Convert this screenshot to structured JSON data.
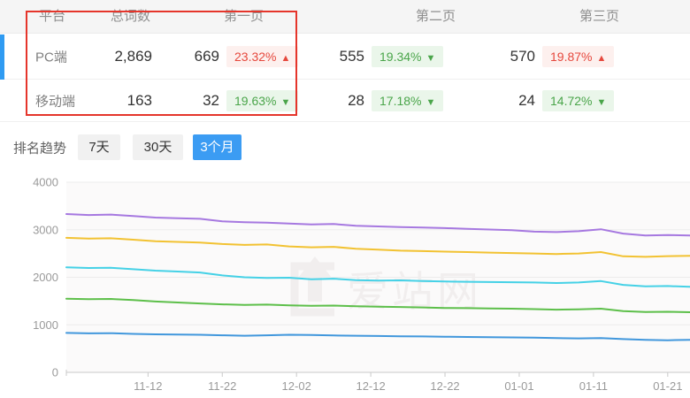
{
  "table": {
    "headers": {
      "platform": "平台",
      "total": "总词数",
      "page1": "第一页",
      "page2": "第二页",
      "page3": "第三页"
    },
    "rows": [
      {
        "platform": "PC端",
        "total": "2,869",
        "page1": {
          "count": "669",
          "pct": "23.32%",
          "dir": "▲",
          "trend": "up"
        },
        "page2": {
          "count": "555",
          "pct": "19.34%",
          "dir": "▼",
          "trend": "down"
        },
        "page3": {
          "count": "570",
          "pct": "19.87%",
          "dir": "▲",
          "trend": "up"
        }
      },
      {
        "platform": "移动端",
        "total": "163",
        "page1": {
          "count": "32",
          "pct": "19.63%",
          "dir": "▼",
          "trend": "down"
        },
        "page2": {
          "count": "28",
          "pct": "17.18%",
          "dir": "▼",
          "trend": "down"
        },
        "page3": {
          "count": "24",
          "pct": "14.72%",
          "dir": "▼",
          "trend": "down"
        }
      }
    ]
  },
  "trend": {
    "label": "排名趋势",
    "tabs": [
      {
        "label": "7天",
        "active": false
      },
      {
        "label": "30天",
        "active": false
      },
      {
        "label": "3个月",
        "active": true
      }
    ]
  },
  "colors": {
    "accent_blue": "#3b9cf3",
    "focus_red": "#e5352b",
    "badge_up_text": "#e6483d",
    "badge_down_text": "#4aa54a"
  },
  "chart_data": {
    "type": "line",
    "title": "",
    "xlabel": "",
    "ylabel": "",
    "grid": true,
    "legend_position": "none",
    "watermark": "爱站网",
    "y_axis": {
      "min": 0,
      "max": 4000,
      "step": 1000,
      "tick_labels": [
        "0",
        "1000",
        "2000",
        "3000",
        "4000"
      ]
    },
    "x_axis": {
      "tick_labels": [
        "11-12",
        "11-22",
        "12-02",
        "12-12",
        "12-22",
        "01-01",
        "01-11",
        "01-21"
      ],
      "tick_days": [
        11,
        21,
        31,
        41,
        51,
        61,
        71,
        81
      ],
      "total_days": 84
    },
    "x_labels": [
      "11-01",
      "11-04",
      "11-07",
      "11-10",
      "11-13",
      "11-16",
      "11-19",
      "11-22",
      "11-25",
      "11-28",
      "12-01",
      "12-04",
      "12-07",
      "12-10",
      "12-13",
      "12-16",
      "12-19",
      "12-22",
      "12-25",
      "12-28",
      "12-31",
      "01-03",
      "01-06",
      "01-09",
      "01-12",
      "01-15",
      "01-18",
      "01-21",
      "01-24"
    ],
    "series": [
      {
        "name": "line-purple",
        "color": "#a678e0",
        "values": [
          3330,
          3310,
          3320,
          3290,
          3255,
          3240,
          3230,
          3175,
          3160,
          3150,
          3130,
          3110,
          3120,
          3085,
          3070,
          3055,
          3045,
          3035,
          3020,
          3005,
          2990,
          2960,
          2950,
          2970,
          3010,
          2920,
          2880,
          2890,
          2880
        ]
      },
      {
        "name": "line-yellow",
        "color": "#f2c232",
        "values": [
          2830,
          2815,
          2820,
          2790,
          2760,
          2745,
          2730,
          2700,
          2680,
          2690,
          2650,
          2630,
          2640,
          2600,
          2580,
          2560,
          2550,
          2540,
          2530,
          2520,
          2510,
          2500,
          2490,
          2500,
          2530,
          2440,
          2430,
          2445,
          2450
        ]
      },
      {
        "name": "line-cyan",
        "color": "#45d1e6",
        "values": [
          2210,
          2195,
          2200,
          2170,
          2140,
          2120,
          2100,
          2040,
          2000,
          1985,
          1990,
          1960,
          1970,
          1940,
          1930,
          1935,
          1920,
          1910,
          1905,
          1900,
          1895,
          1890,
          1880,
          1890,
          1920,
          1840,
          1810,
          1815,
          1800
        ]
      },
      {
        "name": "line-green",
        "color": "#5dbf4a",
        "values": [
          1550,
          1540,
          1545,
          1520,
          1490,
          1470,
          1450,
          1430,
          1420,
          1425,
          1410,
          1400,
          1405,
          1390,
          1380,
          1375,
          1365,
          1355,
          1350,
          1345,
          1340,
          1330,
          1320,
          1325,
          1340,
          1290,
          1270,
          1275,
          1265
        ]
      },
      {
        "name": "line-blue",
        "color": "#4197dc",
        "values": [
          830,
          820,
          825,
          810,
          800,
          795,
          790,
          780,
          770,
          780,
          790,
          785,
          775,
          770,
          765,
          760,
          755,
          750,
          745,
          740,
          735,
          730,
          720,
          715,
          720,
          700,
          685,
          675,
          685
        ]
      }
    ]
  }
}
